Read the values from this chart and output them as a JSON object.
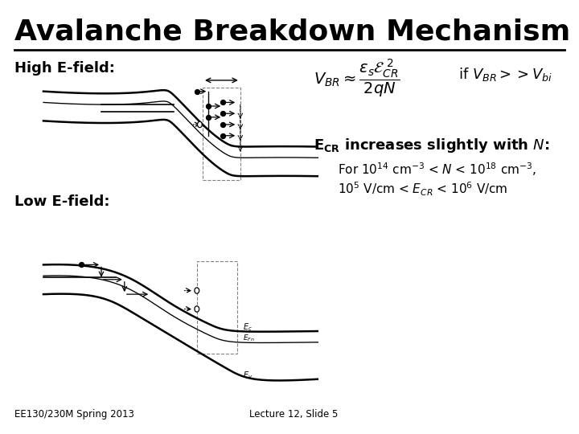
{
  "title": "Avalanche Breakdown Mechanism",
  "title_fontsize": 26,
  "title_fontweight": "bold",
  "bg_color": "#ffffff",
  "text_color": "#000000",
  "high_efield_label": "High E-field:",
  "low_efield_label": "Low E-field:",
  "ecr_text_bold": "$\\mathbf{E_{CR}}$ increases slightly with $\\mathit{N}$:",
  "range_text_line1": "For $10^{14}$ cm$^{-3}$ < $\\mathit{N}$ < $10^{18}$ cm$^{-3}$,",
  "range_text_line2": "$10^5$ V/cm < $E_{CR}$ < $10^6$ V/cm",
  "footer_left": "EE130/230M Spring 2013",
  "footer_right": "Lecture 12, Slide 5"
}
